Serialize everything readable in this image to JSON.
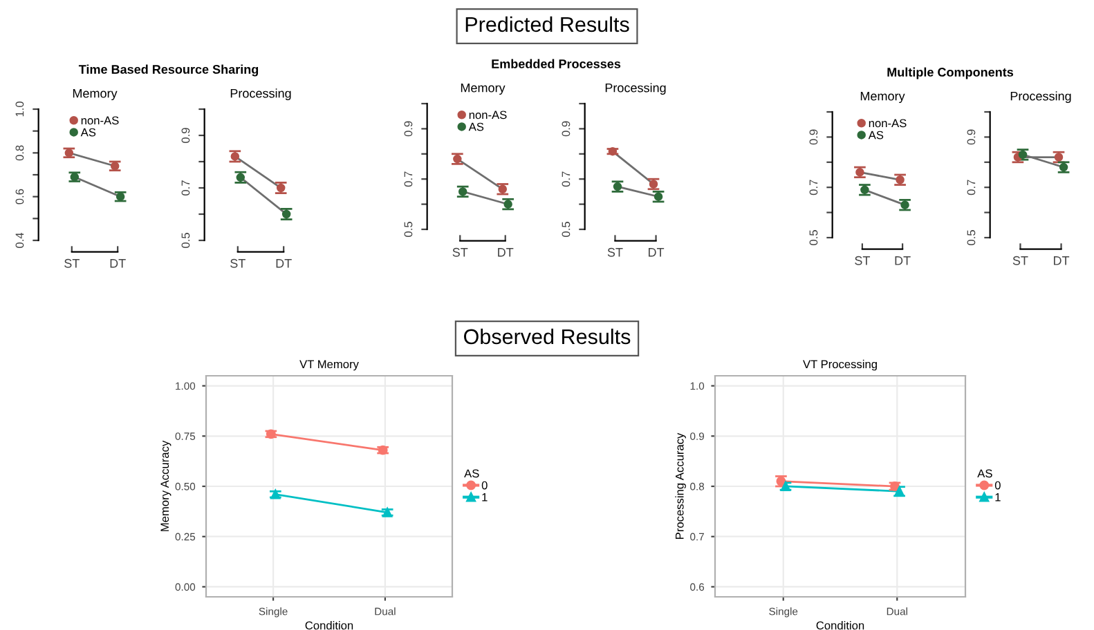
{
  "chart_data": [
    {
      "type": "line",
      "title": "Memory",
      "subtitle": "Time Based Resource Sharing",
      "annotations": [
        "Predicted Results"
      ],
      "categories": [
        "ST",
        "DT"
      ],
      "ylim": [
        0.4,
        1.0
      ],
      "yticks": [
        0.4,
        {
          "value": 0.5,
          "label": null
        },
        0.6,
        {
          "value": 0.7,
          "label": null
        },
        0.8,
        {
          "value": 0.9,
          "label": null
        },
        {
          "value": 1.0,
          "label": "1.0"
        }
      ],
      "legend": "top",
      "marker": "circle",
      "series": [
        {
          "name": "non-AS",
          "color": "#b5524a",
          "values": [
            0.8,
            0.74
          ],
          "errors": [
            0.02,
            0.02
          ]
        },
        {
          "name": "AS",
          "color": "#2e6b3a",
          "values": [
            0.69,
            0.6
          ],
          "errors": [
            0.02,
            0.02
          ]
        }
      ]
    },
    {
      "type": "line",
      "title": "Processing",
      "categories": [
        "ST",
        "DT"
      ],
      "ylim": [
        0.5,
        1.0
      ],
      "yticks": [
        0.5,
        {
          "value": 0.6,
          "label": null
        },
        0.7,
        {
          "value": 0.8,
          "label": null
        },
        0.9,
        {
          "value": 1.0,
          "label": null
        }
      ],
      "marker": "circle",
      "series": [
        {
          "color": "#b5524a",
          "values": [
            0.82,
            0.7
          ],
          "errors": [
            0.02,
            0.02
          ]
        },
        {
          "color": "#2e6b3a",
          "values": [
            0.74,
            0.6
          ],
          "errors": [
            0.02,
            0.02
          ]
        }
      ]
    },
    {
      "type": "line",
      "title": "Memory",
      "subtitle": "Embedded Processes",
      "categories": [
        "ST",
        "DT"
      ],
      "ylim": [
        0.5,
        1.0
      ],
      "yticks": [
        0.5,
        {
          "value": 0.6,
          "label": null
        },
        0.7,
        {
          "value": 0.8,
          "label": null
        },
        0.9,
        {
          "value": 1.0,
          "label": null
        }
      ],
      "legend": "top",
      "marker": "circle",
      "series": [
        {
          "name": "non-AS",
          "color": "#b5524a",
          "values": [
            0.78,
            0.66
          ],
          "errors": [
            0.02,
            0.02
          ]
        },
        {
          "name": "AS",
          "color": "#2e6b3a",
          "values": [
            0.65,
            0.6
          ],
          "errors": [
            0.02,
            0.02
          ]
        }
      ]
    },
    {
      "type": "line",
      "title": "Processing",
      "categories": [
        "ST",
        "DT"
      ],
      "ylim": [
        0.5,
        1.0
      ],
      "yticks": [
        0.5,
        {
          "value": 0.6,
          "label": null
        },
        0.7,
        {
          "value": 0.8,
          "label": null
        },
        0.9,
        {
          "value": 1.0,
          "label": null
        }
      ],
      "marker": "circle",
      "series": [
        {
          "color": "#b5524a",
          "values": [
            0.81,
            0.68
          ],
          "errors": [
            0.01,
            0.02
          ]
        },
        {
          "color": "#2e6b3a",
          "values": [
            0.67,
            0.63
          ],
          "errors": [
            0.02,
            0.02
          ]
        }
      ]
    },
    {
      "type": "line",
      "title": "Memory",
      "subtitle": "Multiple Components",
      "categories": [
        "ST",
        "DT"
      ],
      "ylim": [
        0.5,
        1.0
      ],
      "yticks": [
        0.5,
        {
          "value": 0.6,
          "label": null
        },
        0.7,
        {
          "value": 0.8,
          "label": null
        },
        0.9,
        {
          "value": 1.0,
          "label": null
        }
      ],
      "legend": "top",
      "marker": "circle",
      "series": [
        {
          "name": "non-AS",
          "color": "#b5524a",
          "values": [
            0.76,
            0.73
          ],
          "errors": [
            0.02,
            0.02
          ]
        },
        {
          "name": "AS",
          "color": "#2e6b3a",
          "values": [
            0.69,
            0.63
          ],
          "errors": [
            0.02,
            0.02
          ]
        }
      ]
    },
    {
      "type": "line",
      "title": "Processing",
      "categories": [
        "ST",
        "DT"
      ],
      "ylim": [
        0.5,
        1.0
      ],
      "yticks": [
        0.5,
        {
          "value": 0.6,
          "label": null
        },
        0.7,
        {
          "value": 0.8,
          "label": null
        },
        0.9,
        {
          "value": 1.0,
          "label": null
        }
      ],
      "marker": "circle",
      "series": [
        {
          "color": "#b5524a",
          "values": [
            0.82,
            0.82
          ],
          "errors": [
            0.02,
            0.02
          ]
        },
        {
          "color": "#2e6b3a",
          "values": [
            0.83,
            0.78
          ],
          "errors": [
            0.02,
            0.02
          ]
        }
      ]
    },
    {
      "type": "line",
      "title": "VT Memory",
      "annotations": [
        "Observed Results"
      ],
      "xlabel": "Condition",
      "ylabel": "Memory Accuracy",
      "categories": [
        "Single",
        "Dual"
      ],
      "ylim": [
        -0.05,
        1.05
      ],
      "yticks": [
        {
          "value": 0,
          "label": "0.00"
        },
        {
          "value": 0.25,
          "label": "0.25"
        },
        {
          "value": 0.5,
          "label": "0.50"
        },
        {
          "value": 0.75,
          "label": "0.75"
        },
        {
          "value": 1.0,
          "label": "1.00"
        }
      ],
      "grid": true,
      "legend": "right",
      "legend_title": "AS",
      "series": [
        {
          "name": "0",
          "color": "#f8766d",
          "marker": "circle",
          "values": [
            0.76,
            0.68
          ],
          "errors": [
            0.015,
            0.015
          ]
        },
        {
          "name": "1",
          "color": "#00bfc4",
          "marker": "triangle",
          "values": [
            0.46,
            0.37
          ],
          "errors": [
            0.015,
            0.015
          ]
        }
      ]
    },
    {
      "type": "line",
      "title": "VT Processing",
      "xlabel": "Condition",
      "ylabel": "Processing Accuracy",
      "categories": [
        "Single",
        "Dual"
      ],
      "ylim": [
        0.58,
        1.02
      ],
      "yticks": [
        0.6,
        0.7,
        0.8,
        0.9,
        {
          "value": 1.0,
          "label": "1.0"
        }
      ],
      "grid": true,
      "legend": "right",
      "legend_title": "AS",
      "series": [
        {
          "name": "0",
          "color": "#f8766d",
          "marker": "circle",
          "values": [
            0.81,
            0.8
          ],
          "errors": [
            0.01,
            0.007
          ]
        },
        {
          "name": "1",
          "color": "#00bfc4",
          "marker": "triangle",
          "values": [
            0.8,
            0.79
          ],
          "errors": [
            0.007,
            0.009
          ]
        }
      ]
    }
  ]
}
